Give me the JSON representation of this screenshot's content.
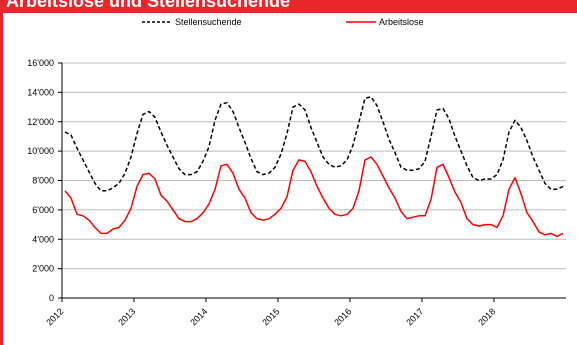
{
  "header": {
    "title": "Arbeitslose und Stellensuchende"
  },
  "colors": {
    "title_bar": "#e8262b",
    "stellensuchende": "#000000",
    "arbeitslose": "#ff0000"
  },
  "chart_data": {
    "type": "line",
    "title": "",
    "xlabel": "",
    "ylabel": "",
    "ylim": [
      0,
      16000
    ],
    "y_ticks": [
      0,
      2000,
      4000,
      6000,
      8000,
      10000,
      12000,
      14000,
      16000
    ],
    "y_tick_labels": [
      "0",
      "2'000",
      "4'000",
      "6'000",
      "8'000",
      "10'000",
      "12'000",
      "14'000",
      "16'000"
    ],
    "x_tick_labels": [
      "2012",
      "2013",
      "2014",
      "2015",
      "2016",
      "2017",
      "2018"
    ],
    "x_start": "2012-01",
    "x_end": "2018-12",
    "grid": true,
    "legend_position": "top",
    "series": [
      {
        "name": "Stellensuchende",
        "style": "dashed",
        "color": "#000000",
        "values": [
          11300,
          11100,
          10200,
          9400,
          8600,
          7800,
          7300,
          7300,
          7500,
          7800,
          8500,
          9600,
          11200,
          12500,
          12700,
          12300,
          11300,
          10400,
          9600,
          8800,
          8400,
          8400,
          8600,
          9300,
          10300,
          12100,
          13200,
          13300,
          12700,
          11600,
          10600,
          9500,
          8600,
          8400,
          8500,
          8900,
          9800,
          11200,
          13000,
          13200,
          12800,
          11600,
          10600,
          9600,
          9100,
          8900,
          9000,
          9400,
          10400,
          12000,
          13600,
          13700,
          13100,
          12000,
          10800,
          9900,
          8900,
          8700,
          8700,
          8800,
          9300,
          11000,
          12800,
          12900,
          12200,
          11000,
          10000,
          9000,
          8200,
          8000,
          8100,
          8100,
          8400,
          9400,
          11300,
          12100,
          11600,
          10700,
          9600,
          8700,
          7800,
          7400,
          7400,
          7600
        ]
      },
      {
        "name": "Arbeitslose",
        "style": "solid",
        "color": "#ff0000",
        "values": [
          7300,
          6800,
          5700,
          5600,
          5300,
          4800,
          4400,
          4400,
          4700,
          4800,
          5300,
          6100,
          7600,
          8400,
          8500,
          8100,
          7000,
          6600,
          6000,
          5400,
          5200,
          5200,
          5400,
          5800,
          6400,
          7400,
          9000,
          9100,
          8500,
          7400,
          6800,
          5800,
          5400,
          5300,
          5400,
          5700,
          6100,
          6900,
          8700,
          9400,
          9300,
          8600,
          7600,
          6800,
          6100,
          5700,
          5600,
          5700,
          6100,
          7300,
          9400,
          9600,
          9100,
          8300,
          7500,
          6800,
          5900,
          5400,
          5500,
          5600,
          5600,
          6700,
          8900,
          9100,
          8200,
          7200,
          6500,
          5400,
          5000,
          4900,
          5000,
          5000,
          4800,
          5600,
          7400,
          8200,
          7100,
          5800,
          5200,
          4500,
          4300,
          4400,
          4200,
          4400
        ]
      }
    ]
  }
}
